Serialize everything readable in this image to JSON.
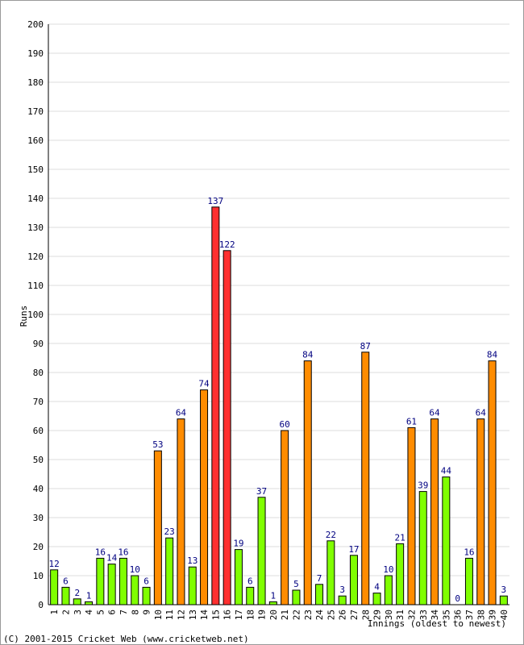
{
  "chart_data": {
    "type": "bar",
    "y_label": "Runs",
    "x_label": "Innings (oldest to newest)",
    "footer": "(C) 2001-2015 Cricket Web (www.cricketweb.net)",
    "categories": [
      "1",
      "2",
      "3",
      "4",
      "5",
      "6",
      "7",
      "8",
      "9",
      "10",
      "11",
      "12",
      "13",
      "14",
      "15",
      "16",
      "17",
      "18",
      "19",
      "20",
      "21",
      "22",
      "23",
      "24",
      "25",
      "26",
      "27",
      "28",
      "29",
      "30",
      "31",
      "32",
      "33",
      "34",
      "35",
      "36",
      "37",
      "38",
      "39",
      "40"
    ],
    "values": [
      12,
      6,
      2,
      1,
      16,
      14,
      16,
      10,
      6,
      53,
      23,
      64,
      13,
      74,
      137,
      122,
      19,
      6,
      37,
      1,
      60,
      5,
      84,
      7,
      22,
      3,
      17,
      87,
      4,
      10,
      21,
      61,
      39,
      64,
      44,
      0,
      16,
      64,
      84,
      3
    ],
    "colors": [
      "#80ff00",
      "#80ff00",
      "#80ff00",
      "#80ff00",
      "#80ff00",
      "#80ff00",
      "#80ff00",
      "#80ff00",
      "#80ff00",
      "#ff8c00",
      "#80ff00",
      "#ff8c00",
      "#80ff00",
      "#ff8c00",
      "#ff3030",
      "#ff3030",
      "#80ff00",
      "#80ff00",
      "#80ff00",
      "#80ff00",
      "#ff8c00",
      "#80ff00",
      "#ff8c00",
      "#80ff00",
      "#80ff00",
      "#80ff00",
      "#80ff00",
      "#ff8c00",
      "#80ff00",
      "#80ff00",
      "#80ff00",
      "#ff8c00",
      "#80ff00",
      "#ff8c00",
      "#80ff00",
      "#80ff00",
      "#80ff00",
      "#ff8c00",
      "#ff8c00",
      "#80ff00"
    ],
    "ylim": [
      0,
      200
    ],
    "yticks": [
      0,
      10,
      20,
      30,
      40,
      50,
      60,
      70,
      80,
      90,
      100,
      110,
      120,
      130,
      140,
      150,
      160,
      170,
      180,
      190,
      200
    ],
    "grid": true
  }
}
